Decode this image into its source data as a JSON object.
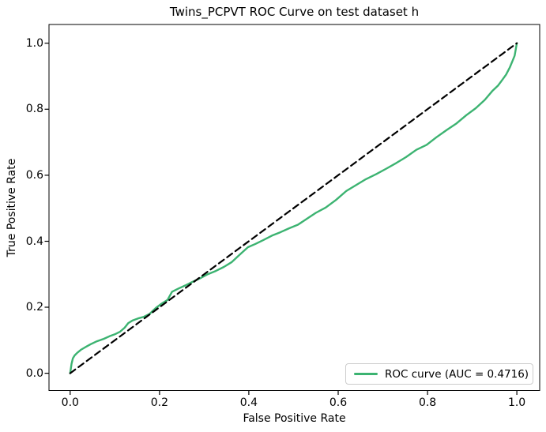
{
  "chart_data": {
    "type": "line",
    "title": "Twins_PCPVT ROC Curve on test dataset h",
    "xlabel": "False Positive Rate",
    "ylabel": "True Positive Rate",
    "xlim": [
      -0.05,
      1.05
    ],
    "ylim": [
      -0.05,
      1.05
    ],
    "grid": false,
    "x_tick_values": [
      0.0,
      0.2,
      0.4,
      0.6,
      0.8,
      1.0
    ],
    "y_tick_values": [
      0.0,
      0.2,
      0.4,
      0.6,
      0.8,
      1.0
    ],
    "x_tick_labels": [
      "0.0",
      "0.2",
      "0.4",
      "0.6",
      "0.8",
      "1.0"
    ],
    "y_tick_labels": [
      "0.0",
      "0.2",
      "0.4",
      "0.6",
      "0.8",
      "1.0"
    ],
    "auc": 0.4716,
    "legend": {
      "position": "lower right",
      "entries": [
        {
          "label": "ROC curve (AUC = 0.4716)",
          "color": "#3cb371"
        }
      ]
    },
    "series": [
      {
        "name": "ROC curve (AUC = 0.4716)",
        "color": "#3cb371",
        "style": "solid",
        "line_width": 2.4,
        "points": [
          [
            0.0,
            0.0
          ],
          [
            0.003,
            0.028
          ],
          [
            0.006,
            0.045
          ],
          [
            0.01,
            0.054
          ],
          [
            0.016,
            0.062
          ],
          [
            0.024,
            0.071
          ],
          [
            0.034,
            0.079
          ],
          [
            0.046,
            0.088
          ],
          [
            0.06,
            0.097
          ],
          [
            0.075,
            0.104
          ],
          [
            0.088,
            0.112
          ],
          [
            0.1,
            0.118
          ],
          [
            0.112,
            0.126
          ],
          [
            0.122,
            0.138
          ],
          [
            0.13,
            0.152
          ],
          [
            0.14,
            0.16
          ],
          [
            0.152,
            0.166
          ],
          [
            0.165,
            0.171
          ],
          [
            0.178,
            0.18
          ],
          [
            0.192,
            0.198
          ],
          [
            0.205,
            0.211
          ],
          [
            0.218,
            0.222
          ],
          [
            0.228,
            0.247
          ],
          [
            0.243,
            0.257
          ],
          [
            0.258,
            0.266
          ],
          [
            0.274,
            0.277
          ],
          [
            0.29,
            0.287
          ],
          [
            0.308,
            0.3
          ],
          [
            0.326,
            0.31
          ],
          [
            0.344,
            0.322
          ],
          [
            0.362,
            0.337
          ],
          [
            0.38,
            0.36
          ],
          [
            0.398,
            0.382
          ],
          [
            0.415,
            0.392
          ],
          [
            0.433,
            0.404
          ],
          [
            0.452,
            0.417
          ],
          [
            0.47,
            0.427
          ],
          [
            0.49,
            0.439
          ],
          [
            0.51,
            0.45
          ],
          [
            0.53,
            0.468
          ],
          [
            0.55,
            0.486
          ],
          [
            0.572,
            0.502
          ],
          [
            0.595,
            0.525
          ],
          [
            0.618,
            0.552
          ],
          [
            0.64,
            0.57
          ],
          [
            0.662,
            0.588
          ],
          [
            0.685,
            0.603
          ],
          [
            0.708,
            0.62
          ],
          [
            0.73,
            0.637
          ],
          [
            0.752,
            0.655
          ],
          [
            0.775,
            0.677
          ],
          [
            0.798,
            0.692
          ],
          [
            0.82,
            0.715
          ],
          [
            0.843,
            0.737
          ],
          [
            0.865,
            0.757
          ],
          [
            0.887,
            0.782
          ],
          [
            0.908,
            0.803
          ],
          [
            0.928,
            0.828
          ],
          [
            0.945,
            0.855
          ],
          [
            0.958,
            0.872
          ],
          [
            0.968,
            0.89
          ],
          [
            0.976,
            0.905
          ],
          [
            0.984,
            0.926
          ],
          [
            0.99,
            0.945
          ],
          [
            0.995,
            0.962
          ],
          [
            1.0,
            1.0
          ]
        ]
      },
      {
        "name": "chance-diagonal",
        "color": "#000000",
        "style": "dashed",
        "line_width": 2.2,
        "points": [
          [
            0.0,
            0.0
          ],
          [
            1.0,
            1.0
          ]
        ]
      }
    ]
  },
  "colors": {
    "roc_curve": "#3cb371",
    "diagonal": "#000000",
    "spine": "#000000",
    "legend_border": "#cccccc",
    "background": "#ffffff"
  }
}
